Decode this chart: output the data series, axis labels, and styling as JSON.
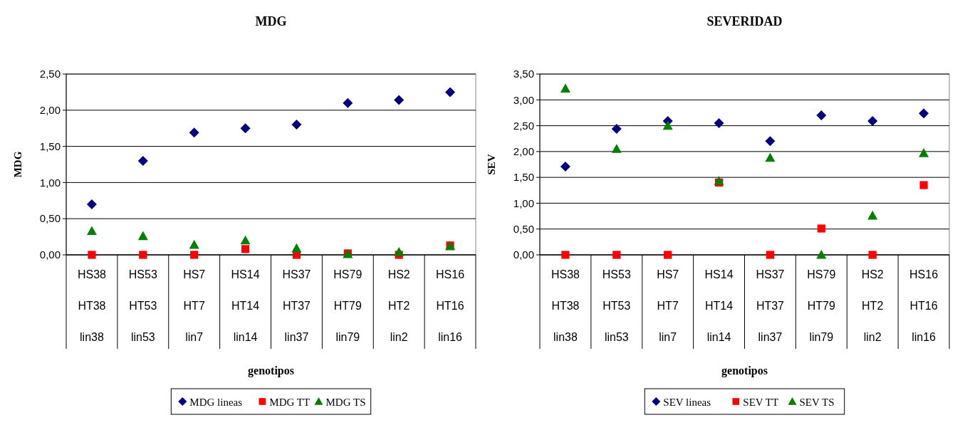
{
  "chart_data": [
    {
      "type": "scatter",
      "title": "MDG",
      "xlabel": "genotipos",
      "ylabel": "MDG",
      "categories": [
        "HS38\nHT38\nlin38",
        "HS53\nHT53\nlin53",
        "HS7\nHT7\nlin7",
        "HS14\nHT14\nlin14",
        "HS37\nHT37\nlin37",
        "HS79\nHT79\nlin79",
        "HS2\nHT2\nlin2",
        "HS16\nHT16\nlin16"
      ],
      "ylim": [
        0,
        2.5
      ],
      "yticks": [
        {
          "value": 0,
          "label": "0,00"
        },
        {
          "value": 0.5,
          "label": "0,50"
        },
        {
          "value": 1,
          "label": "1,00"
        },
        {
          "value": 1.5,
          "label": "1,50"
        },
        {
          "value": 2,
          "label": "2,00"
        },
        {
          "value": 2.5,
          "label": "2,50"
        }
      ],
      "grid": "y",
      "legend": "bottom",
      "series": [
        {
          "name": "MDG lineas",
          "color": "#000080",
          "marker": "diamond",
          "values": [
            0.7,
            1.3,
            1.69,
            1.75,
            1.8,
            2.1,
            2.14,
            2.25
          ]
        },
        {
          "name": "MDG TT",
          "color": "#ff0000",
          "marker": "square",
          "values": [
            0,
            0,
            0,
            0.08,
            0,
            0.02,
            0,
            0.13
          ]
        },
        {
          "name": "MDG TS",
          "color": "#008000",
          "marker": "triangle",
          "values": [
            0.33,
            0.26,
            0.14,
            0.2,
            0.09,
            0.01,
            0.04,
            0.12
          ]
        }
      ]
    },
    {
      "type": "scatter",
      "title": "SEVERIDAD",
      "xlabel": "genotipos",
      "ylabel": "SEV",
      "categories": [
        "HS38\nHT38\nlin38",
        "HS53\nHT53\nlin53",
        "HS7\nHT7\nlin7",
        "HS14\nHT14\nlin14",
        "HS37\nHT37\nlin37",
        "HS79\nHT79\nlin79",
        "HS2\nHT2\nlin2",
        "HS16\nHT16\nlin16"
      ],
      "ylim": [
        0,
        3.5
      ],
      "yticks": [
        {
          "value": 0,
          "label": "0,00"
        },
        {
          "value": 0.5,
          "label": "0,50"
        },
        {
          "value": 1,
          "label": "1,00"
        },
        {
          "value": 1.5,
          "label": "1,50"
        },
        {
          "value": 2,
          "label": "2,00"
        },
        {
          "value": 2.5,
          "label": "2,50"
        },
        {
          "value": 3,
          "label": "3,00"
        },
        {
          "value": 3.5,
          "label": "3,50"
        }
      ],
      "grid": "y",
      "legend": "bottom",
      "series": [
        {
          "name": "SEV lineas",
          "color": "#000080",
          "marker": "diamond",
          "values": [
            1.71,
            2.44,
            2.59,
            2.55,
            2.2,
            2.7,
            2.59,
            2.74
          ]
        },
        {
          "name": "SEV TT",
          "color": "#ff0000",
          "marker": "square",
          "values": [
            0,
            0,
            0,
            1.4,
            0,
            0.51,
            0,
            1.35
          ]
        },
        {
          "name": "SEV TS",
          "color": "#008000",
          "marker": "triangle",
          "values": [
            3.22,
            2.05,
            2.5,
            1.43,
            1.88,
            0,
            0.76,
            1.97
          ]
        }
      ]
    }
  ]
}
